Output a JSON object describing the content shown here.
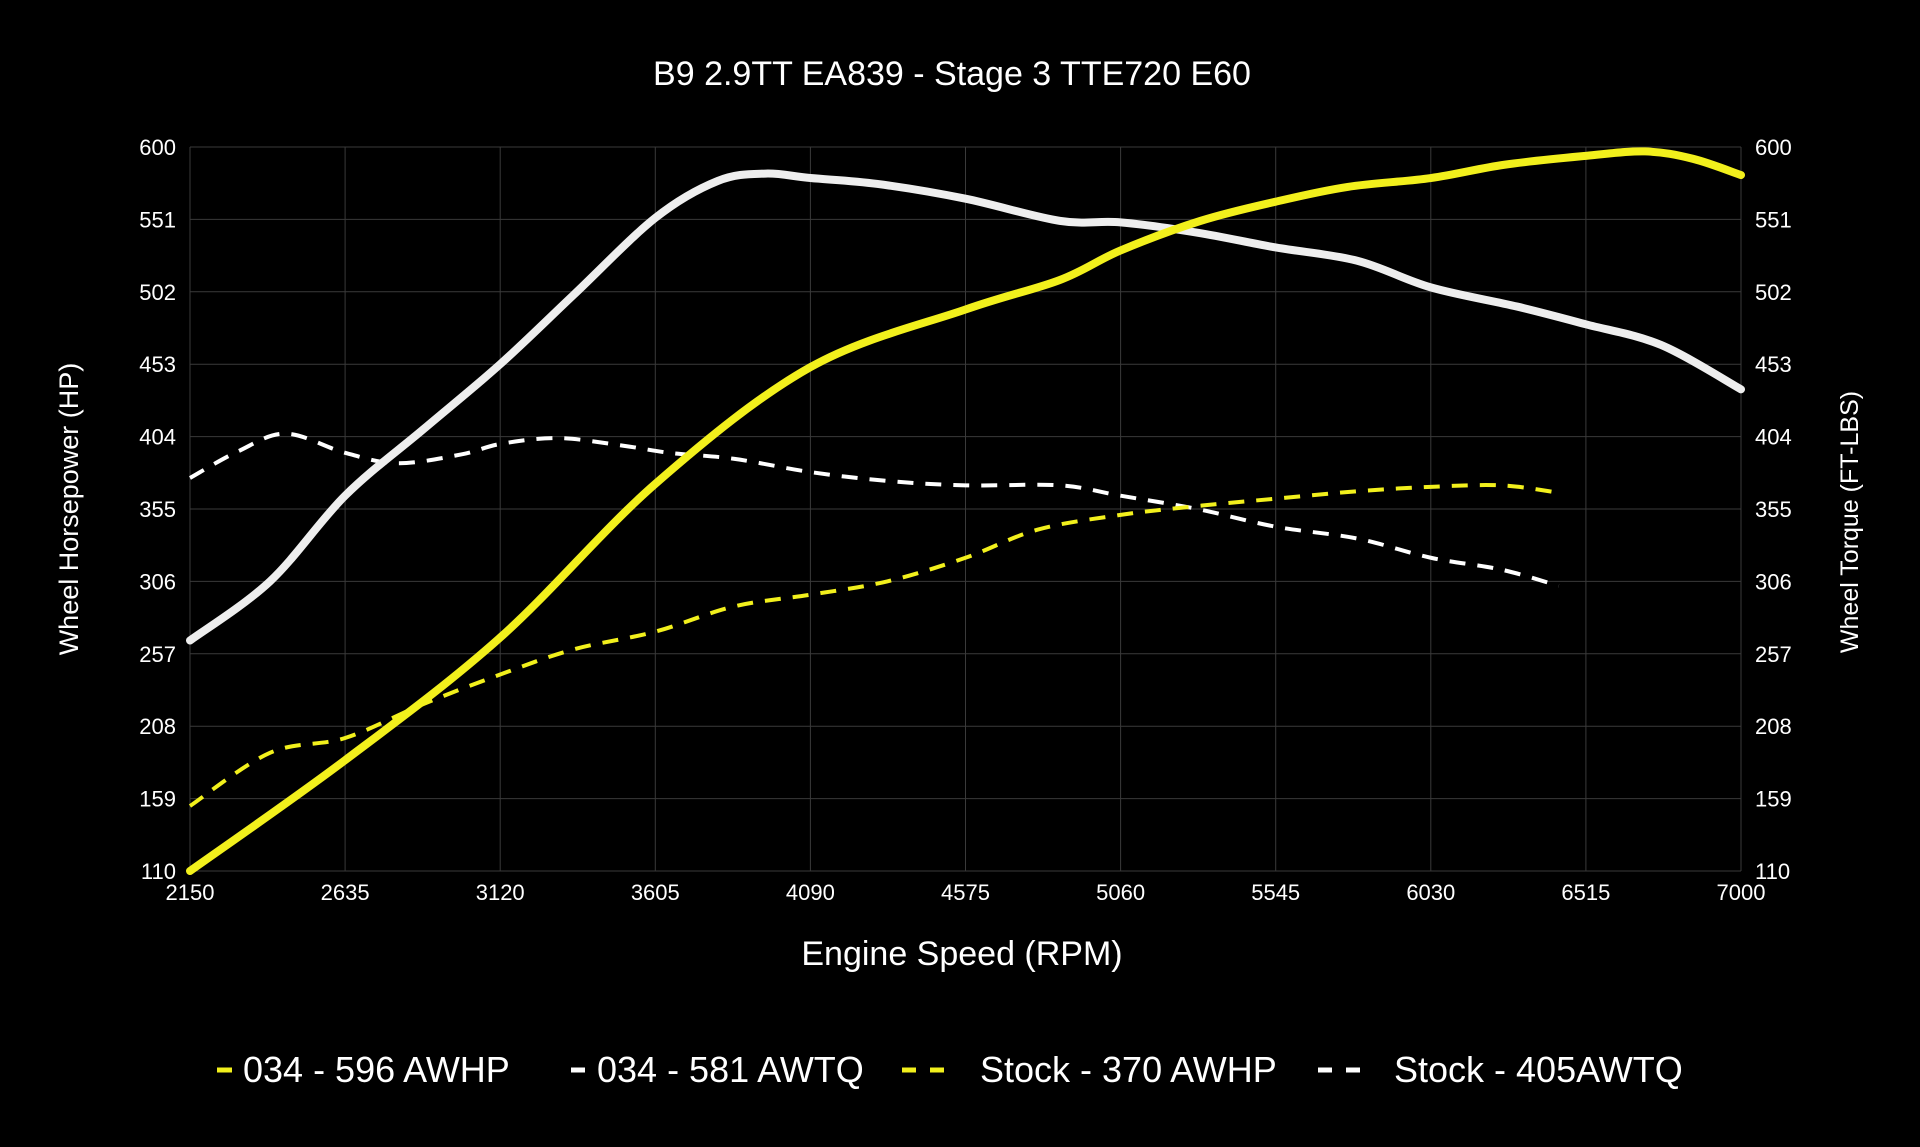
{
  "chart_data": {
    "type": "line",
    "title": "B9 2.9TT EA839 - Stage 3 TTE720 E60",
    "xlabel": "Engine Speed (RPM)",
    "ylabel": "Wheel Horsepower (HP)",
    "ylabel_right": "Wheel Torque (FT-LBS)",
    "xlim": [
      2150,
      7000
    ],
    "ylim": [
      110,
      600
    ],
    "x_ticks": [
      2150,
      2635,
      3120,
      3605,
      4090,
      4575,
      5060,
      5545,
      6030,
      6515,
      7000
    ],
    "y_ticks": [
      110,
      159,
      208,
      257,
      306,
      355,
      404,
      453,
      502,
      551,
      600
    ],
    "grid": true,
    "legend_position": "bottom",
    "colors": {
      "background": "#000000",
      "grid": "#3a3a3a",
      "yellow": "#f2f01c",
      "white": "#eeeeee"
    },
    "series": [
      {
        "name": "034 - 596 AWHP",
        "color": "#f2f01c",
        "style": "solid",
        "x": [
          2150,
          2635,
          3120,
          3605,
          4090,
          4575,
          4870,
          5060,
          5310,
          5545,
          5770,
          6030,
          6260,
          6515,
          6700,
          6850,
          7000
        ],
        "y": [
          110,
          185,
          268,
          372,
          451,
          490,
          510,
          530,
          550,
          563,
          573,
          579,
          588,
          594,
          597,
          592,
          581
        ]
      },
      {
        "name": "034 - 581 AWTQ",
        "color": "#eeeeee",
        "style": "solid",
        "x": [
          2150,
          2400,
          2635,
          2880,
          3120,
          3350,
          3605,
          3800,
          3950,
          4090,
          4300,
          4575,
          4870,
          5060,
          5300,
          5545,
          5800,
          6030,
          6300,
          6515,
          6750,
          7000
        ],
        "y": [
          266,
          306,
          364,
          409,
          453,
          500,
          552,
          577,
          582,
          579,
          575,
          565,
          550,
          549,
          542,
          532,
          523,
          505,
          492,
          480,
          466,
          436
        ]
      },
      {
        "name": "Stock - 370 AWHP",
        "color": "#f2f01c",
        "style": "dashed",
        "x": [
          2150,
          2400,
          2635,
          2880,
          3120,
          3350,
          3605,
          3850,
          4090,
          4330,
          4575,
          4800,
          5060,
          5300,
          5545,
          5800,
          6030,
          6250,
          6430
        ],
        "y": [
          154,
          190,
          200,
          223,
          243,
          260,
          272,
          289,
          297,
          306,
          322,
          341,
          351,
          357,
          362,
          367,
          370,
          371,
          366
        ]
      },
      {
        "name": "Stock - 405AWTQ",
        "color": "#ffffff",
        "style": "dashed",
        "x": [
          2150,
          2300,
          2450,
          2635,
          2800,
          3000,
          3120,
          3300,
          3500,
          3650,
          3850,
          4090,
          4330,
          4575,
          4870,
          5060,
          5300,
          5545,
          5800,
          6030,
          6250,
          6430
        ],
        "y": [
          376,
          394,
          406,
          393,
          386,
          392,
          399,
          403,
          398,
          393,
          389,
          380,
          374,
          371,
          371,
          364,
          355,
          343,
          335,
          322,
          314,
          303
        ]
      }
    ]
  }
}
